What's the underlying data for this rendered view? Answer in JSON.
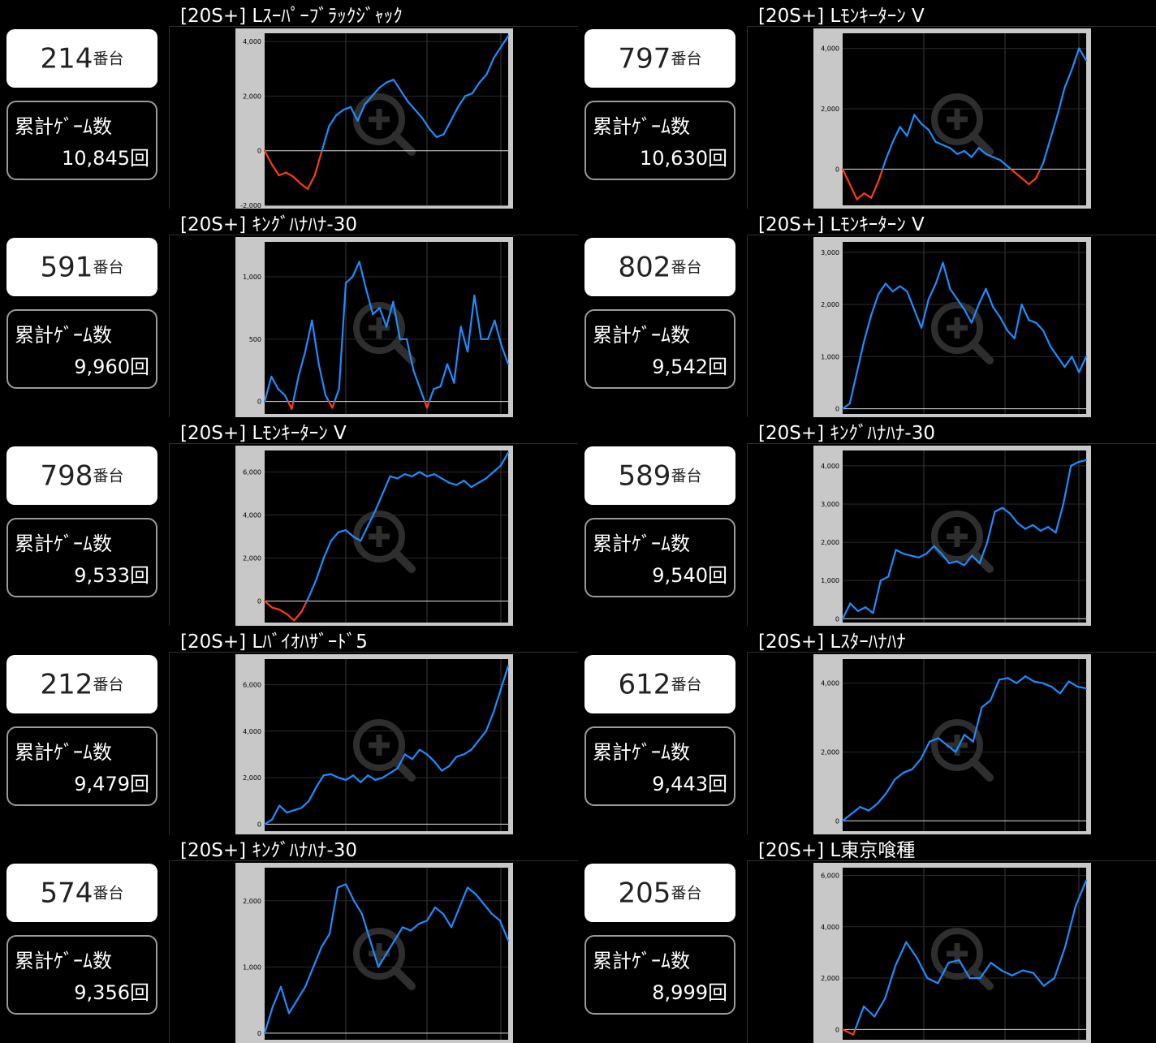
{
  "units": {
    "machine_suffix": "番台",
    "games_label": "累計ｹﾞｰﾑ数"
  },
  "colors": {
    "positive": "#1e8cff",
    "negative": "#ff3c14",
    "bg": "#000000",
    "frame": "#c8c8c8"
  },
  "entries": [
    {
      "title": "[20S+] Lｽｰﾊﾟｰﾌﾞﾗｯｸｼﾞｬｯｸ",
      "machine": "214",
      "games": "10,845回",
      "chart_data": {
        "type": "line",
        "ylim": [
          -2000,
          4300
        ],
        "yticks": [
          {
            "v": 4000,
            "label": "4,000"
          },
          {
            "v": 2000,
            "label": "2,000"
          },
          {
            "v": 0,
            "label": "0"
          },
          {
            "v": -2000,
            "label": "-2,000"
          }
        ],
        "values": [
          0,
          -500,
          -900,
          -800,
          -950,
          -1200,
          -1400,
          -900,
          0,
          900,
          1300,
          1500,
          1600,
          1100,
          1700,
          2000,
          2300,
          2500,
          2600,
          2200,
          1800,
          1500,
          1200,
          800,
          500,
          600,
          1100,
          1600,
          2000,
          2100,
          2500,
          2800,
          3400,
          3800,
          4200
        ]
      }
    },
    {
      "title": "[20S+] Lﾓﾝｷｰﾀｰﾝ V",
      "machine": "797",
      "games": "10,630回",
      "chart_data": {
        "type": "line",
        "ylim": [
          -1200,
          4500
        ],
        "yticks": [
          {
            "v": 4000,
            "label": "4,000"
          },
          {
            "v": 2000,
            "label": "2,000"
          },
          {
            "v": 0,
            "label": "0"
          }
        ],
        "values": [
          0,
          -500,
          -1000,
          -800,
          -950,
          -400,
          300,
          900,
          1400,
          1100,
          1800,
          1500,
          1300,
          900,
          800,
          700,
          500,
          600,
          400,
          700,
          500,
          400,
          300,
          100,
          -100,
          -300,
          -500,
          -300,
          200,
          1000,
          1800,
          2700,
          3300,
          4000,
          3600
        ]
      }
    },
    {
      "title": "[20S+] ｷﾝｸﾞﾊﾅﾊﾅ-30",
      "machine": "591",
      "games": "9,960回",
      "chart_data": {
        "type": "line",
        "ylim": [
          -100,
          1280
        ],
        "yticks": [
          {
            "v": 1000,
            "label": "1,000"
          },
          {
            "v": 500,
            "label": "500"
          },
          {
            "v": 0,
            "label": "0"
          }
        ],
        "values": [
          0,
          200,
          100,
          50,
          -60,
          200,
          400,
          650,
          300,
          50,
          -50,
          100,
          950,
          1000,
          1120,
          900,
          700,
          750,
          600,
          800,
          500,
          500,
          250,
          100,
          -50,
          100,
          120,
          300,
          150,
          600,
          400,
          850,
          500,
          500,
          650,
          450,
          300
        ]
      }
    },
    {
      "title": "[20S+] Lﾓﾝｷｰﾀｰﾝ V",
      "machine": "802",
      "games": "9,542回",
      "chart_data": {
        "type": "line",
        "ylim": [
          -100,
          3200
        ],
        "yticks": [
          {
            "v": 3000,
            "label": "3,000"
          },
          {
            "v": 2000,
            "label": "2,000"
          },
          {
            "v": 1000,
            "label": "1,000"
          },
          {
            "v": 0,
            "label": "0"
          }
        ],
        "values": [
          0,
          100,
          700,
          1300,
          1800,
          2200,
          2400,
          2250,
          2350,
          2250,
          1900,
          1550,
          2100,
          2400,
          2800,
          2300,
          2100,
          1900,
          1650,
          2000,
          2300,
          1950,
          1750,
          1500,
          1350,
          2000,
          1700,
          1650,
          1500,
          1200,
          1000,
          800,
          1000,
          700,
          1000
        ]
      }
    },
    {
      "title": "[20S+] Lﾓﾝｷｰﾀｰﾝ V",
      "machine": "798",
      "games": "9,533回",
      "chart_data": {
        "type": "line",
        "ylim": [
          -1000,
          7000
        ],
        "yticks": [
          {
            "v": 6000,
            "label": "6,000"
          },
          {
            "v": 4000,
            "label": "4,000"
          },
          {
            "v": 2000,
            "label": "2,000"
          },
          {
            "v": 0,
            "label": "0"
          }
        ],
        "values": [
          0,
          -300,
          -400,
          -600,
          -900,
          -500,
          200,
          1000,
          2000,
          2800,
          3200,
          3300,
          3000,
          2800,
          3500,
          4200,
          5000,
          5800,
          5700,
          5900,
          5800,
          6000,
          5800,
          5900,
          5700,
          5500,
          5400,
          5600,
          5300,
          5500,
          5700,
          6000,
          6300,
          6900
        ]
      }
    },
    {
      "title": "[20S+] ｷﾝｸﾞﾊﾅﾊﾅ-30",
      "machine": "589",
      "games": "9,540回",
      "chart_data": {
        "type": "line",
        "ylim": [
          -100,
          4400
        ],
        "yticks": [
          {
            "v": 4000,
            "label": "4,000"
          },
          {
            "v": 3000,
            "label": "3,000"
          },
          {
            "v": 2000,
            "label": "2,000"
          },
          {
            "v": 1000,
            "label": "1,000"
          },
          {
            "v": 0,
            "label": "0"
          }
        ],
        "values": [
          0,
          400,
          200,
          300,
          150,
          1000,
          1100,
          1800,
          1700,
          1650,
          1600,
          1700,
          1900,
          1700,
          1450,
          1500,
          1400,
          1650,
          1450,
          2000,
          2800,
          2900,
          2750,
          2500,
          2350,
          2450,
          2300,
          2400,
          2250,
          3000,
          4000,
          4100,
          4150
        ]
      }
    },
    {
      "title": "[20S+] Lﾊﾞｲｵﾊｻﾞｰﾄﾞ5",
      "machine": "212",
      "games": "9,479回",
      "chart_data": {
        "type": "line",
        "ylim": [
          -300,
          7100
        ],
        "yticks": [
          {
            "v": 6000,
            "label": "6,000"
          },
          {
            "v": 4000,
            "label": "4,000"
          },
          {
            "v": 2000,
            "label": "2,000"
          },
          {
            "v": 0,
            "label": "0"
          }
        ],
        "values": [
          0,
          200,
          800,
          500,
          600,
          700,
          1000,
          1600,
          2100,
          2150,
          2000,
          1900,
          2100,
          1800,
          2100,
          1900,
          2000,
          2200,
          2400,
          3000,
          2800,
          3200,
          3000,
          2700,
          2300,
          2500,
          2900,
          3000,
          3200,
          3600,
          4000,
          4800,
          5800,
          6800
        ]
      }
    },
    {
      "title": "[20S+] Lｽﾀｰﾊﾅﾊﾅ",
      "machine": "612",
      "games": "9,443回",
      "chart_data": {
        "type": "line",
        "ylim": [
          -300,
          4700
        ],
        "yticks": [
          {
            "v": 4000,
            "label": "4,000"
          },
          {
            "v": 2000,
            "label": "2,000"
          },
          {
            "v": 0,
            "label": "0"
          }
        ],
        "values": [
          0,
          200,
          400,
          300,
          500,
          800,
          1200,
          1400,
          1500,
          1800,
          2300,
          2400,
          2200,
          2000,
          2500,
          2300,
          3300,
          3500,
          4100,
          4150,
          4000,
          4200,
          4050,
          4000,
          3900,
          3700,
          4050,
          3900,
          3850
        ]
      }
    },
    {
      "title": "[20S+] ｷﾝｸﾞﾊﾅﾊﾅ-30",
      "machine": "574",
      "games": "9,356回",
      "chart_data": {
        "type": "line",
        "ylim": [
          -100,
          2500
        ],
        "yticks": [
          {
            "v": 2000,
            "label": "2,000"
          },
          {
            "v": 1000,
            "label": "1,000"
          },
          {
            "v": 0,
            "label": "0"
          }
        ],
        "values": [
          0,
          400,
          700,
          300,
          500,
          700,
          1000,
          1300,
          1500,
          2200,
          2250,
          2000,
          1800,
          1400,
          1000,
          1200,
          1400,
          1600,
          1550,
          1650,
          1700,
          1900,
          1800,
          1600,
          1900,
          2200,
          2100,
          1950,
          1800,
          1700,
          1400
        ]
      }
    },
    {
      "title": "[20S+] L東京喰種",
      "machine": "205",
      "games": "8,999回",
      "chart_data": {
        "type": "line",
        "ylim": [
          -400,
          6300
        ],
        "yticks": [
          {
            "v": 6000,
            "label": "6,000"
          },
          {
            "v": 4000,
            "label": "4,000"
          },
          {
            "v": 2000,
            "label": "2,000"
          },
          {
            "v": 0,
            "label": "0"
          }
        ],
        "values": [
          0,
          -200,
          900,
          500,
          1200,
          2500,
          3400,
          2800,
          2000,
          1800,
          2600,
          2700,
          2000,
          2000,
          2600,
          2300,
          2100,
          2300,
          2200,
          1700,
          2000,
          3200,
          4800,
          5800
        ]
      }
    }
  ]
}
